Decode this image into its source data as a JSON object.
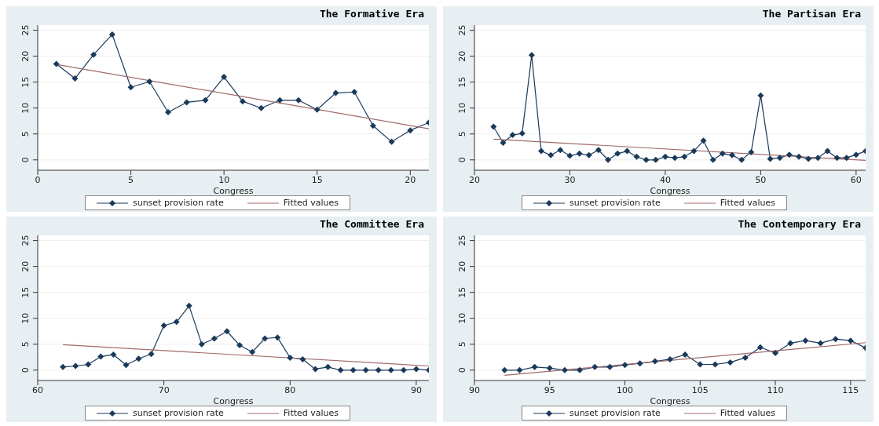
{
  "chart_data": [
    {
      "type": "line",
      "title": "The Formative Era",
      "xlabel": "Congress",
      "xlim": [
        0,
        21
      ],
      "xticks": [
        0,
        5,
        10,
        15,
        20
      ],
      "ylim": [
        -2,
        26
      ],
      "yticks": [
        0,
        5,
        10,
        15,
        20,
        25
      ],
      "grid": "y",
      "legend": "bottom",
      "line_style": "solid",
      "series": [
        {
          "name": "sunset provision rate",
          "color": "#1a3a5a",
          "marker": "diamond",
          "x": [
            1,
            2,
            3,
            4,
            5,
            6,
            7,
            8,
            9,
            10,
            11,
            12,
            13,
            14,
            15,
            16,
            17,
            18,
            19,
            20,
            21
          ],
          "values": [
            18.5,
            15.7,
            20.3,
            24.2,
            14,
            15.1,
            9.2,
            11.1,
            11.5,
            16,
            11.3,
            10,
            11.5,
            11.5,
            9.7,
            12.9,
            13.1,
            6.6,
            3.5,
            5.7,
            7.2
          ]
        },
        {
          "name": "Fitted values",
          "color": "#a06a6a",
          "marker": "none",
          "x": [
            1,
            21
          ],
          "values": [
            18.4,
            6.0
          ]
        }
      ]
    },
    {
      "type": "line",
      "title": "The Partisan Era",
      "xlabel": "Congress",
      "xlim": [
        20,
        61
      ],
      "xticks": [
        20,
        30,
        40,
        50,
        60
      ],
      "ylim": [
        -2,
        26
      ],
      "yticks": [
        0,
        5,
        10,
        15,
        20,
        25
      ],
      "grid": "y",
      "legend": "bottom",
      "line_style": "solid",
      "series": [
        {
          "name": "sunset provision rate",
          "color": "#1a3a5a",
          "marker": "diamond",
          "x": [
            22,
            23,
            24,
            25,
            26,
            27,
            28,
            29,
            30,
            31,
            32,
            33,
            34,
            35,
            36,
            37,
            38,
            39,
            40,
            41,
            42,
            43,
            44,
            45,
            46,
            47,
            48,
            49,
            50,
            51,
            52,
            53,
            54,
            55,
            56,
            57,
            58,
            59,
            60,
            61
          ],
          "values": [
            6.4,
            3.3,
            4.8,
            5.1,
            20.2,
            1.7,
            0.9,
            1.9,
            0.8,
            1.2,
            0.9,
            1.9,
            0,
            1.2,
            1.7,
            0.6,
            0,
            0,
            0.6,
            0.4,
            0.6,
            1.7,
            3.7,
            0,
            1.2,
            0.9,
            0,
            1.5,
            12.4,
            0.2,
            0.4,
            1,
            0.6,
            0.2,
            0.4,
            1.7,
            0.4,
            0.4,
            1,
            1.7
          ]
        },
        {
          "name": "Fitted values",
          "color": "#a06a6a",
          "marker": "none",
          "x": [
            22,
            61
          ],
          "values": [
            4.0,
            -0.1
          ]
        }
      ]
    },
    {
      "type": "line",
      "title": "The Committee Era",
      "xlabel": "Congress",
      "xlim": [
        60,
        91
      ],
      "xticks": [
        60,
        70,
        80,
        90
      ],
      "ylim": [
        -2,
        26
      ],
      "yticks": [
        0,
        5,
        10,
        15,
        20,
        25
      ],
      "grid": "y",
      "legend": "bottom",
      "line_style": "solid",
      "series": [
        {
          "name": "sunset provision rate",
          "color": "#1a3a5a",
          "marker": "diamond",
          "x": [
            62,
            63,
            64,
            65,
            66,
            67,
            68,
            69,
            70,
            71,
            72,
            73,
            74,
            75,
            76,
            77,
            78,
            79,
            80,
            81,
            82,
            83,
            84,
            85,
            86,
            87,
            88,
            89,
            90,
            91
          ],
          "values": [
            0.6,
            0.8,
            1.1,
            2.6,
            3,
            1,
            2.2,
            3.1,
            8.6,
            9.3,
            12.4,
            5,
            6.1,
            7.5,
            4.8,
            3.5,
            6.1,
            6.3,
            2.4,
            2.1,
            0.2,
            0.6,
            0,
            0,
            0,
            0,
            0,
            0,
            0.2,
            0
          ]
        },
        {
          "name": "Fitted values",
          "color": "#a06a6a",
          "marker": "none",
          "x": [
            62,
            91
          ],
          "values": [
            4.9,
            0.8
          ]
        }
      ]
    },
    {
      "type": "line",
      "title": "The Contemporary Era",
      "xlabel": "Congress",
      "xlim": [
        90,
        116
      ],
      "xticks": [
        90,
        95,
        100,
        105,
        110,
        115
      ],
      "ylim": [
        -2,
        26
      ],
      "yticks": [
        0,
        5,
        10,
        15,
        20,
        25
      ],
      "grid": "y",
      "legend": "bottom",
      "line_style": "solid",
      "series": [
        {
          "name": "sunset provision rate",
          "color": "#1a3a5a",
          "marker": "diamond",
          "x": [
            92,
            93,
            94,
            95,
            96,
            97,
            98,
            99,
            100,
            101,
            102,
            103,
            104,
            105,
            106,
            107,
            108,
            109,
            110,
            111,
            112,
            113,
            114,
            115,
            116
          ],
          "values": [
            0,
            0,
            0.6,
            0.4,
            0,
            0,
            0.6,
            0.6,
            1,
            1.3,
            1.7,
            2.1,
            3,
            1.1,
            1.1,
            1.5,
            2.4,
            4.4,
            3.3,
            5.2,
            5.7,
            5.2,
            6,
            5.7,
            4.3
          ]
        },
        {
          "name": "Fitted values",
          "color": "#a06a6a",
          "marker": "none",
          "x": [
            92,
            116
          ],
          "values": [
            -1.0,
            5.3
          ]
        }
      ]
    }
  ]
}
